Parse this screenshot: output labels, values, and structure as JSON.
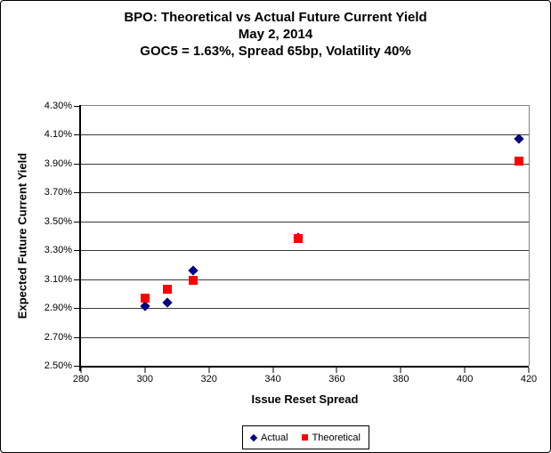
{
  "chart_data": {
    "type": "scatter",
    "title": "BPO: Theoretical vs Actual Future Current Yield",
    "subtitle": "May 2, 2014",
    "subtitle2": "GOC5 = 1.63%, Spread 65bp, Volatility 40%",
    "xlabel": "Issue Reset Spread",
    "ylabel": "Expected Future Current Yield",
    "xlim": [
      280,
      420
    ],
    "ylim": [
      2.5,
      4.3
    ],
    "x_tick_step": 20,
    "y_tick_step": 0.2,
    "x_tick_labels": [
      "280",
      "300",
      "320",
      "340",
      "360",
      "380",
      "400",
      "420"
    ],
    "y_tick_labels": [
      "2.50%",
      "2.70%",
      "2.90%",
      "3.10%",
      "3.30%",
      "3.50%",
      "3.70%",
      "3.90%",
      "4.10%",
      "4.30%"
    ],
    "grid": "horizontal-only",
    "legend_position": "bottom-center",
    "series": [
      {
        "name": "Actual",
        "marker": "diamond",
        "color": "#000080",
        "points": [
          [
            300,
            2.91
          ],
          [
            307,
            2.94
          ],
          [
            315,
            3.16
          ],
          [
            348,
            3.39
          ],
          [
            417,
            4.07
          ]
        ]
      },
      {
        "name": "Theoretical",
        "marker": "square",
        "color": "#FF0000",
        "points": [
          [
            300,
            2.97
          ],
          [
            307,
            3.03
          ],
          [
            315,
            3.09
          ],
          [
            348,
            3.38
          ],
          [
            417,
            3.92
          ]
        ]
      }
    ],
    "colors": {
      "gridline": "#3a3a3a",
      "plot_border": "#808080",
      "axis": "#000000",
      "background": "#ffffff"
    }
  }
}
